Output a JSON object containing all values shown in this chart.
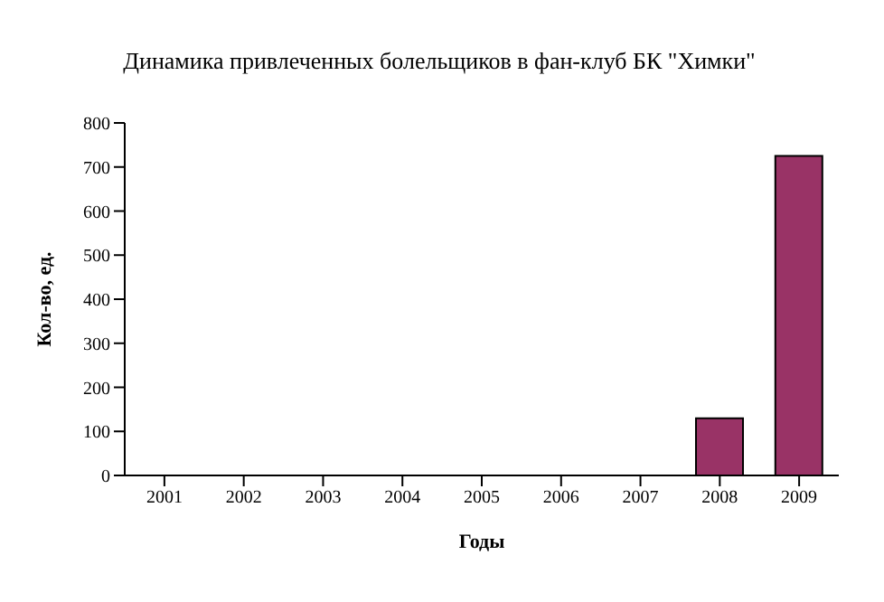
{
  "chart_data": {
    "type": "bar",
    "title": "Динамика привлеченных болельщиков в фан-клуб БК \"Химки\"",
    "xlabel": "Годы",
    "ylabel": "Кол-во, ед.",
    "categories": [
      "2001",
      "2002",
      "2003",
      "2004",
      "2005",
      "2006",
      "2007",
      "2008",
      "2009"
    ],
    "values": [
      0,
      0,
      0,
      0,
      0,
      0,
      0,
      130,
      725
    ],
    "color": "#993366",
    "ylim": [
      0,
      800
    ],
    "yticks": [
      0,
      100,
      200,
      300,
      400,
      500,
      600,
      700,
      800
    ],
    "grid": false,
    "legend": false
  }
}
